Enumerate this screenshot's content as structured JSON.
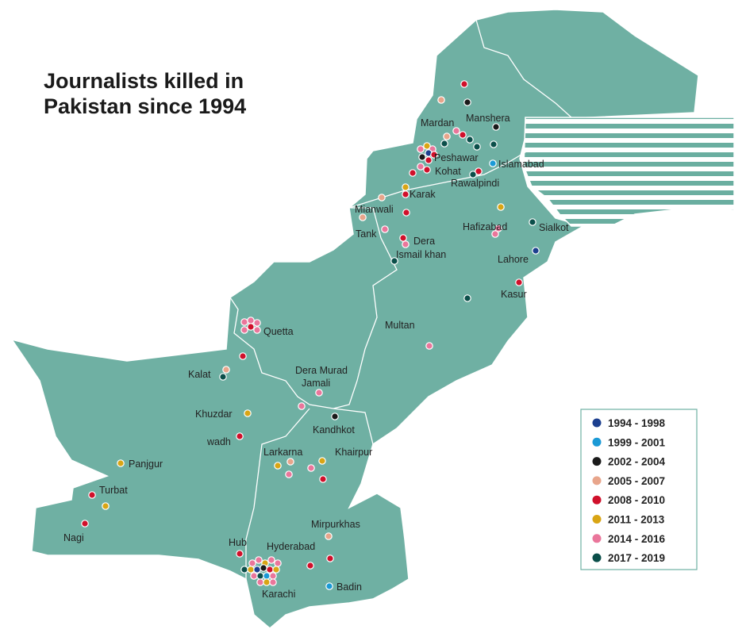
{
  "title": [
    "Journalists killed in",
    "Pakistan since 1994"
  ],
  "places": [
    "Mardan",
    "Manshera",
    "Peshawar",
    "Islamabad",
    "Kohat",
    "Rawalpindi",
    "Karak",
    "Mianwali",
    "Hafizabad",
    "Sialkot",
    "Tank",
    "Dera",
    "Ismail khan",
    "Lahore",
    "Kasur",
    "Multan",
    "Quetta",
    "Kalat",
    "Dera Murad",
    "Jamali",
    "Khuzdar",
    "Kandhkot",
    "wadh",
    "Larkarna",
    "Khairpur",
    "Panjgur",
    "Turbat",
    "Nagi",
    "Mirpurkhas",
    "Hub",
    "Hyderabad",
    "Karachi",
    "Badin"
  ],
  "legend": [
    {
      "label": "1994 - 1998",
      "color": "#1c3f8f"
    },
    {
      "label": "1999 - 2001",
      "color": "#1b9ad6"
    },
    {
      "label": "2002 - 2004",
      "color": "#1a1a1a"
    },
    {
      "label": "2005 - 2007",
      "color": "#e8a58b"
    },
    {
      "label": "2008 - 2010",
      "color": "#d0102b"
    },
    {
      "label": "2011 - 2013",
      "color": "#d9a514"
    },
    {
      "label": "2014 - 2016",
      "color": "#ea769b"
    },
    {
      "label": "2017 - 2019",
      "color": "#0b4f4a"
    }
  ]
}
